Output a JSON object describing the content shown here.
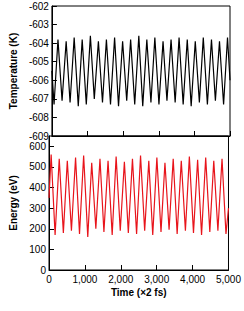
{
  "chart_data": [
    {
      "type": "line",
      "y_label": "Temperature (K)",
      "color": "#000000",
      "tick_labels": "y",
      "x": [
        0,
        60,
        170,
        285,
        400,
        510,
        625,
        740,
        850,
        965,
        1080,
        1190,
        1305,
        1420,
        1530,
        1645,
        1760,
        1870,
        1985,
        2100,
        2210,
        2325,
        2440,
        2550,
        2665,
        2780,
        2890,
        3005,
        3120,
        3230,
        3345,
        3460,
        3570,
        3685,
        3800,
        3910,
        4025,
        4140,
        4250,
        4365,
        4480,
        4590,
        4705,
        4820,
        4930,
        5000
      ],
      "values": [
        -605.5,
        -607.3,
        -603.8,
        -607.1,
        -603.9,
        -607.2,
        -603.7,
        -607.4,
        -603.8,
        -607.3,
        -603.6,
        -607.0,
        -603.9,
        -607.2,
        -603.8,
        -607.3,
        -603.7,
        -607.4,
        -603.9,
        -607.1,
        -603.8,
        -607.3,
        -603.6,
        -607.4,
        -603.8,
        -607.2,
        -603.7,
        -607.3,
        -603.9,
        -607.1,
        -603.8,
        -607.2,
        -603.7,
        -607.3,
        -603.8,
        -607.4,
        -603.9,
        -607.2,
        -603.7,
        -607.3,
        -603.8,
        -607.1,
        -603.9,
        -607.3,
        -603.7,
        -606.0
      ],
      "xlim": [
        0,
        5000
      ],
      "xticks": [
        0,
        1000,
        2000,
        3000,
        4000,
        5000
      ],
      "ylim": [
        -609,
        -602
      ],
      "yticks": [
        -609,
        -608,
        -607,
        -606,
        -605,
        -604,
        -603,
        -602
      ]
    },
    {
      "type": "line",
      "x_label": "Time (×2 fs)",
      "y_label": "Energy (eV)",
      "color": "#e8141b",
      "x": [
        0,
        60,
        170,
        285,
        400,
        510,
        625,
        740,
        850,
        965,
        1080,
        1190,
        1305,
        1420,
        1530,
        1645,
        1760,
        1870,
        1985,
        2100,
        2210,
        2325,
        2440,
        2550,
        2665,
        2780,
        2890,
        3005,
        3120,
        3230,
        3345,
        3460,
        3570,
        3685,
        3800,
        3910,
        4025,
        4140,
        4250,
        4365,
        4480,
        4590,
        4705,
        4820,
        4930,
        5000
      ],
      "values": [
        350,
        560,
        170,
        540,
        180,
        530,
        190,
        545,
        175,
        555,
        160,
        520,
        200,
        540,
        185,
        530,
        170,
        550,
        190,
        525,
        180,
        540,
        175,
        555,
        190,
        530,
        170,
        545,
        185,
        520,
        195,
        540,
        175,
        530,
        190,
        550,
        180,
        535,
        170,
        545,
        185,
        530,
        190,
        540,
        175,
        300
      ],
      "xlim": [
        0,
        5000
      ],
      "xticks": [
        0,
        1000,
        2000,
        3000,
        4000,
        5000
      ],
      "ylim": [
        0,
        650
      ],
      "yticks": [
        0,
        100,
        200,
        300,
        400,
        500,
        600
      ]
    }
  ]
}
